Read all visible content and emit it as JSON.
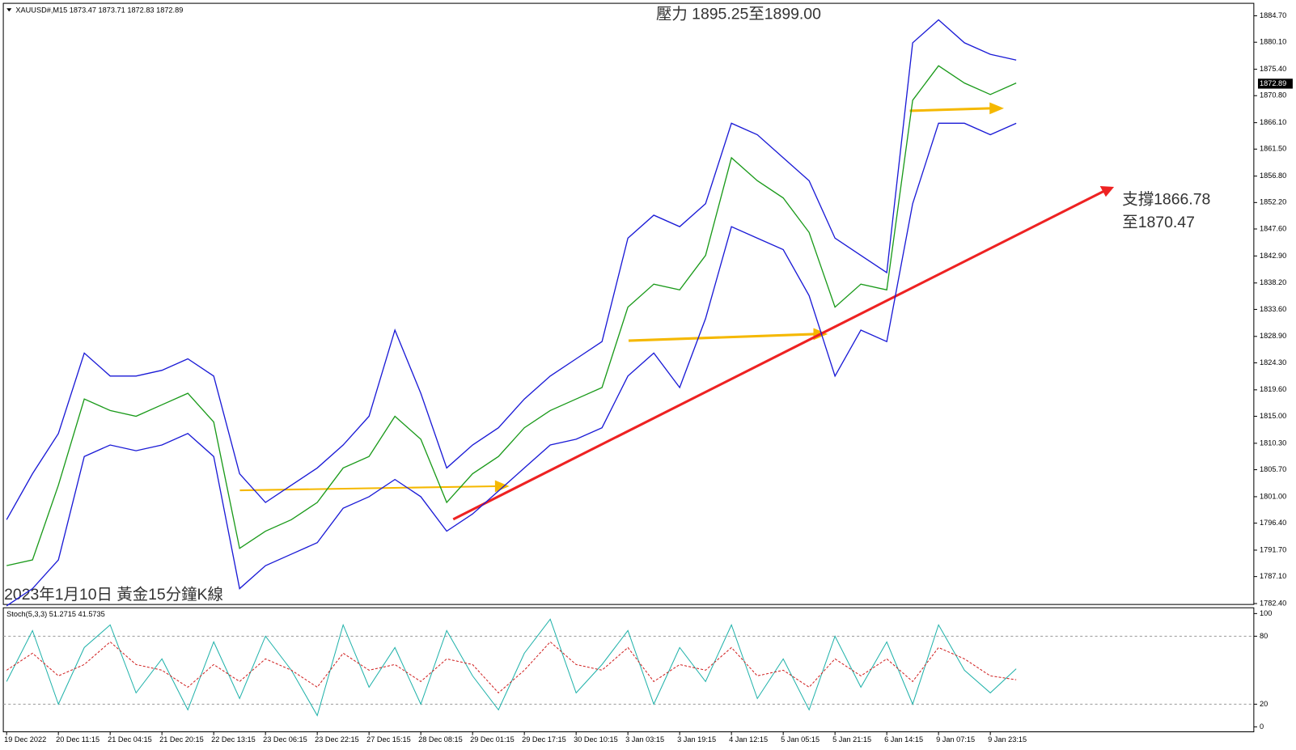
{
  "chart_data": [
    {
      "type": "line",
      "title": "XAUUSD#,M15  1873.47 1873.71 1872.83 1872.89",
      "annotations": [
        "壓力 1895.25至1899.00",
        "支撐1866.78",
        "至1870.47",
        "2023年1月10日 黃金15分鐘K線"
      ],
      "current_price": 1872.89,
      "categories": [
        "19 Dec 2022",
        null,
        "20 Dec 11:15",
        null,
        "21 Dec 04:15",
        null,
        "21 Dec 20:15",
        null,
        "22 Dec 13:15",
        null,
        "23 Dec 06:15",
        null,
        "23 Dec 22:15",
        null,
        "27 Dec 15:15",
        null,
        "28 Dec 08:15",
        null,
        "29 Dec 01:15",
        null,
        "29 Dec 17:15",
        null,
        "30 Dec 10:15",
        null,
        "3 Jan 03:15",
        null,
        "3 Jan 19:15",
        null,
        "4 Jan 12:15",
        null,
        "5 Jan 05:15",
        null,
        "5 Jan 21:15",
        null,
        "6 Jan 14:15",
        null,
        "9 Jan 07:15",
        null,
        "9 Jan 23:15",
        null
      ],
      "series": [
        {
          "color": "#1a1ad6",
          "values": [
            1797,
            1805,
            1812,
            1826,
            1822,
            1822,
            1823,
            1825,
            1822,
            1805,
            1800,
            1803,
            1806,
            1810,
            1815,
            1830,
            1819,
            1806,
            1810,
            1813,
            1818,
            1822,
            1825,
            1828,
            1846,
            1850,
            1848,
            1852,
            1866,
            1864,
            1860,
            1856,
            1846,
            1843,
            1840,
            1880,
            1884,
            1880,
            1878,
            1877
          ]
        },
        {
          "color": "#1a9a1a",
          "values": [
            1789,
            1790,
            1803,
            1818,
            1816,
            1815,
            1817,
            1819,
            1814,
            1792,
            1795,
            1797,
            1800,
            1806,
            1808,
            1815,
            1811,
            1800,
            1805,
            1808,
            1813,
            1816,
            1818,
            1820,
            1834,
            1838,
            1837,
            1843,
            1860,
            1856,
            1853,
            1847,
            1834,
            1838,
            1837,
            1870,
            1876,
            1873,
            1871,
            1873
          ]
        },
        {
          "color": "#1a1ad6",
          "values": [
            1782,
            1785,
            1790,
            1808,
            1810,
            1809,
            1810,
            1812,
            1808,
            1785,
            1789,
            1791,
            1793,
            1799,
            1801,
            1804,
            1801,
            1795,
            1798,
            1802,
            1806,
            1810,
            1811,
            1813,
            1822,
            1826,
            1820,
            1832,
            1848,
            1846,
            1844,
            1836,
            1822,
            1830,
            1828,
            1852,
            1866,
            1866,
            1864,
            1866
          ]
        }
      ],
      "ylim": [
        1782.1,
        1886.3
      ],
      "yticks": [
        {
          "value": 1884.7,
          "label": "1884.70"
        },
        {
          "value": 1880.1,
          "label": "1880.10"
        },
        {
          "value": 1875.4,
          "label": "1875.40"
        },
        {
          "value": 1870.8,
          "label": "1870.80"
        },
        {
          "value": 1866.1,
          "label": "1866.10"
        },
        {
          "value": 1861.5,
          "label": "1861.50"
        },
        {
          "value": 1856.8,
          "label": "1856.80"
        },
        {
          "value": 1852.2,
          "label": "1852.20"
        },
        {
          "value": 1847.6,
          "label": "1847.60"
        },
        {
          "value": 1842.9,
          "label": "1842.90"
        },
        {
          "value": 1838.2,
          "label": "1838.20"
        },
        {
          "value": 1833.6,
          "label": "1833.60"
        },
        {
          "value": 1828.9,
          "label": "1828.90"
        },
        {
          "value": 1824.3,
          "label": "1824.30"
        },
        {
          "value": 1819.6,
          "label": "1819.60"
        },
        {
          "value": 1815,
          "label": "1815.00"
        },
        {
          "value": 1810.3,
          "label": "1810.30"
        },
        {
          "value": 1805.7,
          "label": "1805.70"
        },
        {
          "value": 1801,
          "label": "1801.00"
        },
        {
          "value": 1796.4,
          "label": "1796.40"
        },
        {
          "value": 1791.7,
          "label": "1791.70"
        },
        {
          "value": 1787.1,
          "label": "1787.10"
        },
        {
          "value": 1782.4,
          "label": "1782.40"
        }
      ]
    },
    {
      "type": "line",
      "title": "Stoch(5,3,3) 51.2715 41.5735",
      "series": [
        {
          "color": "#20b2aa",
          "values": [
            40,
            85,
            20,
            70,
            90,
            30,
            60,
            15,
            75,
            25,
            80,
            50,
            10,
            90,
            35,
            70,
            20,
            85,
            45,
            15,
            65,
            95,
            30,
            55,
            85,
            20,
            70,
            40,
            90,
            25,
            60,
            15,
            80,
            35,
            75,
            20,
            90,
            50,
            30,
            51.2715
          ]
        },
        {
          "color": "#d02020",
          "values": [
            50,
            65,
            45,
            55,
            75,
            55,
            50,
            35,
            55,
            40,
            60,
            50,
            35,
            65,
            50,
            55,
            40,
            60,
            55,
            30,
            50,
            75,
            55,
            50,
            70,
            40,
            55,
            50,
            70,
            45,
            50,
            35,
            60,
            45,
            60,
            40,
            70,
            60,
            45,
            41.5735
          ]
        }
      ],
      "ylim": [
        0,
        100
      ],
      "yticks": [
        0,
        20,
        80,
        100
      ]
    }
  ]
}
